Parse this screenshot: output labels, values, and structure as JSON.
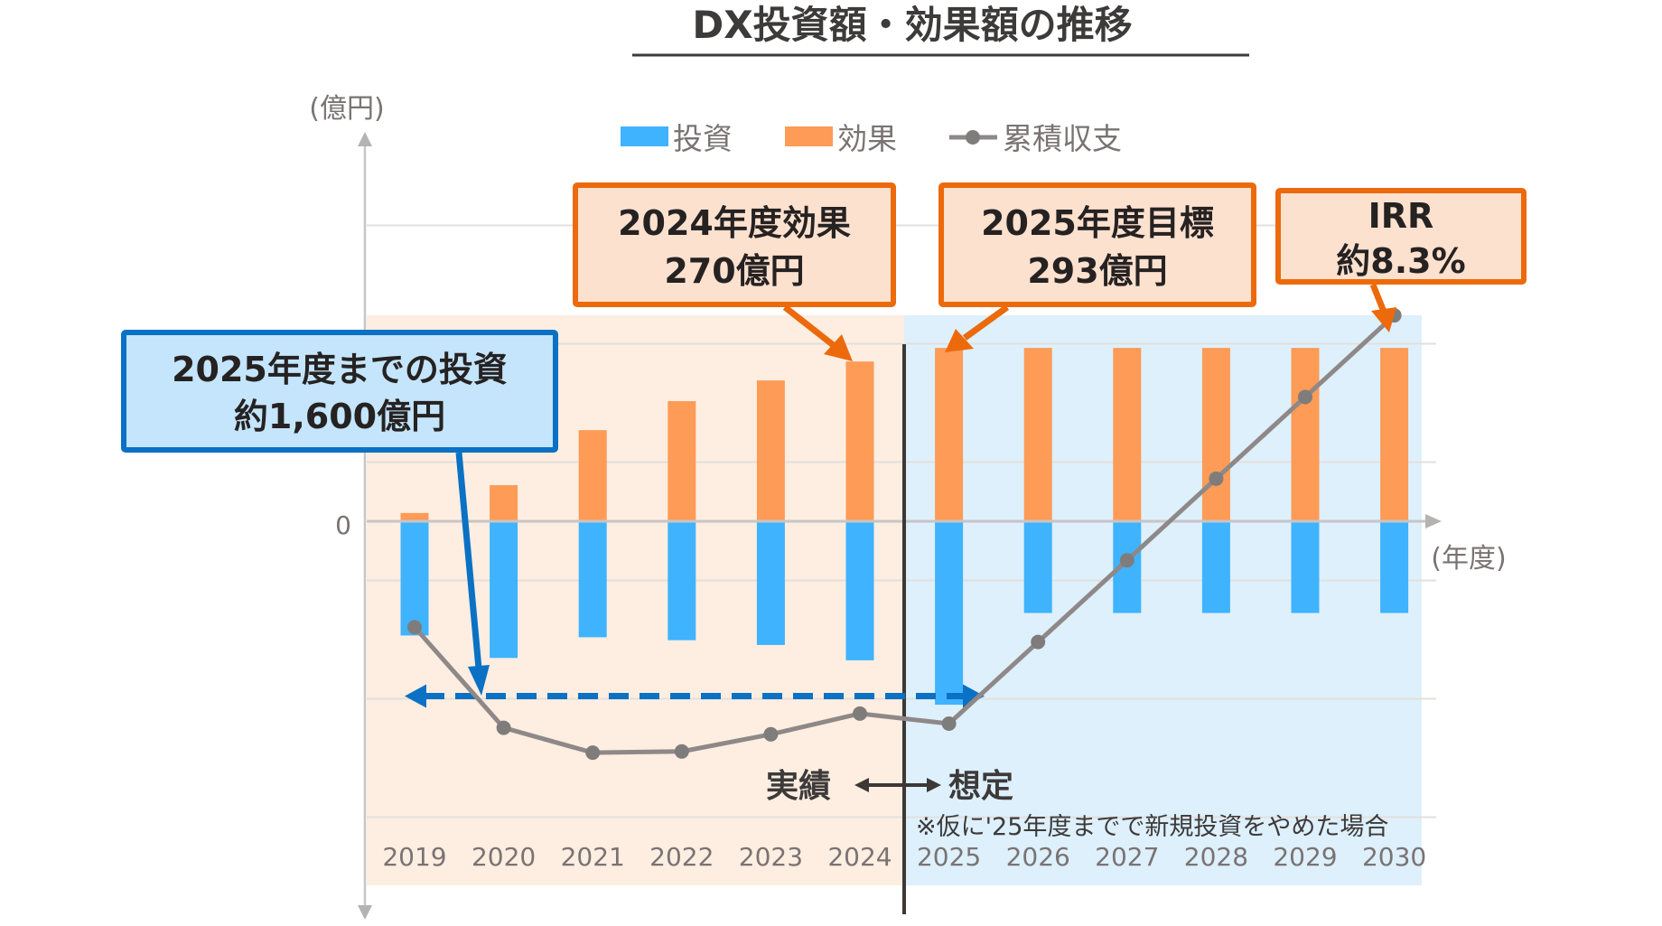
{
  "chart_data": {
    "type": "bar",
    "title": "DX投資額・効果額の推移",
    "ylabel": "(億円)",
    "xlabel": "(年度)",
    "y_tick_labels": [
      "0"
    ],
    "ylim": [
      -580,
      620
    ],
    "gridlines": [
      500,
      300,
      100,
      -100,
      -300,
      -500
    ],
    "grid": true,
    "legend": {
      "placement": "top-center",
      "entries": [
        {
          "name": "投資",
          "kind": "bar",
          "color": "#3fb3fd"
        },
        {
          "name": "効果",
          "kind": "bar",
          "color": "#fd9b57"
        },
        {
          "name": "累積収支",
          "kind": "line",
          "color": "#8f8888"
        }
      ]
    },
    "categories": [
      "2019",
      "2020",
      "2021",
      "2022",
      "2023",
      "2024",
      "2025",
      "2026",
      "2027",
      "2028",
      "2029",
      "2030"
    ],
    "series": [
      {
        "name": "投資",
        "type": "bar",
        "color": "#3fb3fd",
        "values": [
          -193,
          -231,
          -196,
          -201,
          -209,
          -235,
          -310,
          -155,
          -155,
          -155,
          -155,
          -155
        ]
      },
      {
        "name": "効果",
        "type": "bar",
        "color": "#fd9b57",
        "values": [
          14,
          61,
          154,
          203,
          238,
          270,
          293,
          293,
          293,
          293,
          293,
          293
        ]
      },
      {
        "name": "累積収支",
        "type": "line",
        "color": "#8f8888",
        "values": [
          -179,
          -349,
          -391,
          -389,
          -360,
          -325,
          -342,
          -204,
          -66,
          72,
          210,
          348
        ]
      }
    ],
    "regions": [
      {
        "name": "実績",
        "from": "2019",
        "to": "2024",
        "color": "#fdeee1"
      },
      {
        "name": "想定",
        "from": "2025",
        "to": "2030",
        "color": "#ddf0fc"
      }
    ],
    "annotations": {
      "investment_box": {
        "line1": "2025年度までの投資",
        "line2": "約1,600億円"
      },
      "effect_2024_box": {
        "line1": "2024年度効果",
        "line2": "270億円"
      },
      "target_2025_box": {
        "line1": "2025年度目標",
        "line2": "293億円"
      },
      "irr_box": {
        "line1": "IRR",
        "line2": "約8.3%"
      },
      "actual_label": "実績",
      "forecast_label": "想定",
      "footnote": "※仮に'25年度までで新規投資をやめた場合",
      "dashed_arrow_level": -300
    }
  },
  "colors": {
    "invest": "#3fb3fd",
    "effect": "#fd9b57",
    "line": "#8f8888",
    "dot": "#7f7c7c",
    "actual_bg": "#fdeee1",
    "forecast_bg": "#ddf0fc",
    "orange_border": "#ec6a0c",
    "orange_box_bg": "#fde1cf",
    "blue_border": "#0a71c4",
    "blue_box_bg": "#c4e5fb"
  }
}
